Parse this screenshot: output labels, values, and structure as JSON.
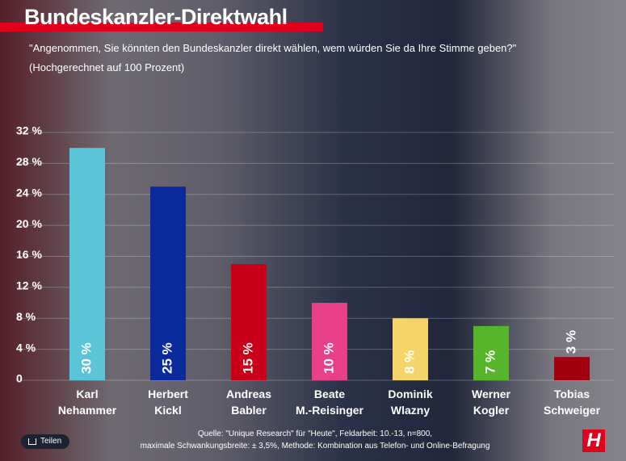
{
  "chart_data": {
    "type": "bar",
    "title": "Bundeskanzler-Direktwahl",
    "subtitle": "\"Angenommen, Sie könnten den Bundeskanzler direkt wählen, wem würden Sie da Ihre Stimme geben?\"",
    "subtitle2": "(Hochgerechnet auf 100 Prozent)",
    "categories": [
      "Karl\nNehammer",
      "Herbert\nKickl",
      "Andreas\nBabler",
      "Beate\nM.-Reisinger",
      "Dominik\nWlazny",
      "Werner\nKogler",
      "Tobias\nSchweiger"
    ],
    "values": [
      30,
      25,
      15,
      10,
      8,
      7,
      3
    ],
    "value_labels": [
      "30 %",
      "25 %",
      "15 %",
      "10 %",
      "8 %",
      "7 %",
      "3 %"
    ],
    "colors": [
      "#5bc4d6",
      "#0b2a9c",
      "#c8001a",
      "#e8418a",
      "#f5d46a",
      "#56b52a",
      "#a0000f"
    ],
    "ylim": [
      0,
      32
    ],
    "yticks": [
      0,
      {
        "value": 4,
        "label": "4 %"
      },
      {
        "value": 8,
        "label": "8 %"
      },
      {
        "value": 12,
        "label": "12 %"
      },
      {
        "value": 16,
        "label": "16 %"
      },
      {
        "value": 20,
        "label": "20 %"
      },
      {
        "value": 24,
        "label": "24 %"
      },
      {
        "value": 28,
        "label": "28 %"
      },
      {
        "value": 32,
        "label": "32 %"
      }
    ],
    "grid": true,
    "source": "Quelle: \"Unique Research\" für \"Heute\", Feldarbeit: 10.-13, n=800,\nmaximale Schwankungsbreite: ± 3,5%, Methode: Kombination aus Telefon- und Online-Befragung",
    "share_button": "Teilen",
    "logo": "H"
  }
}
